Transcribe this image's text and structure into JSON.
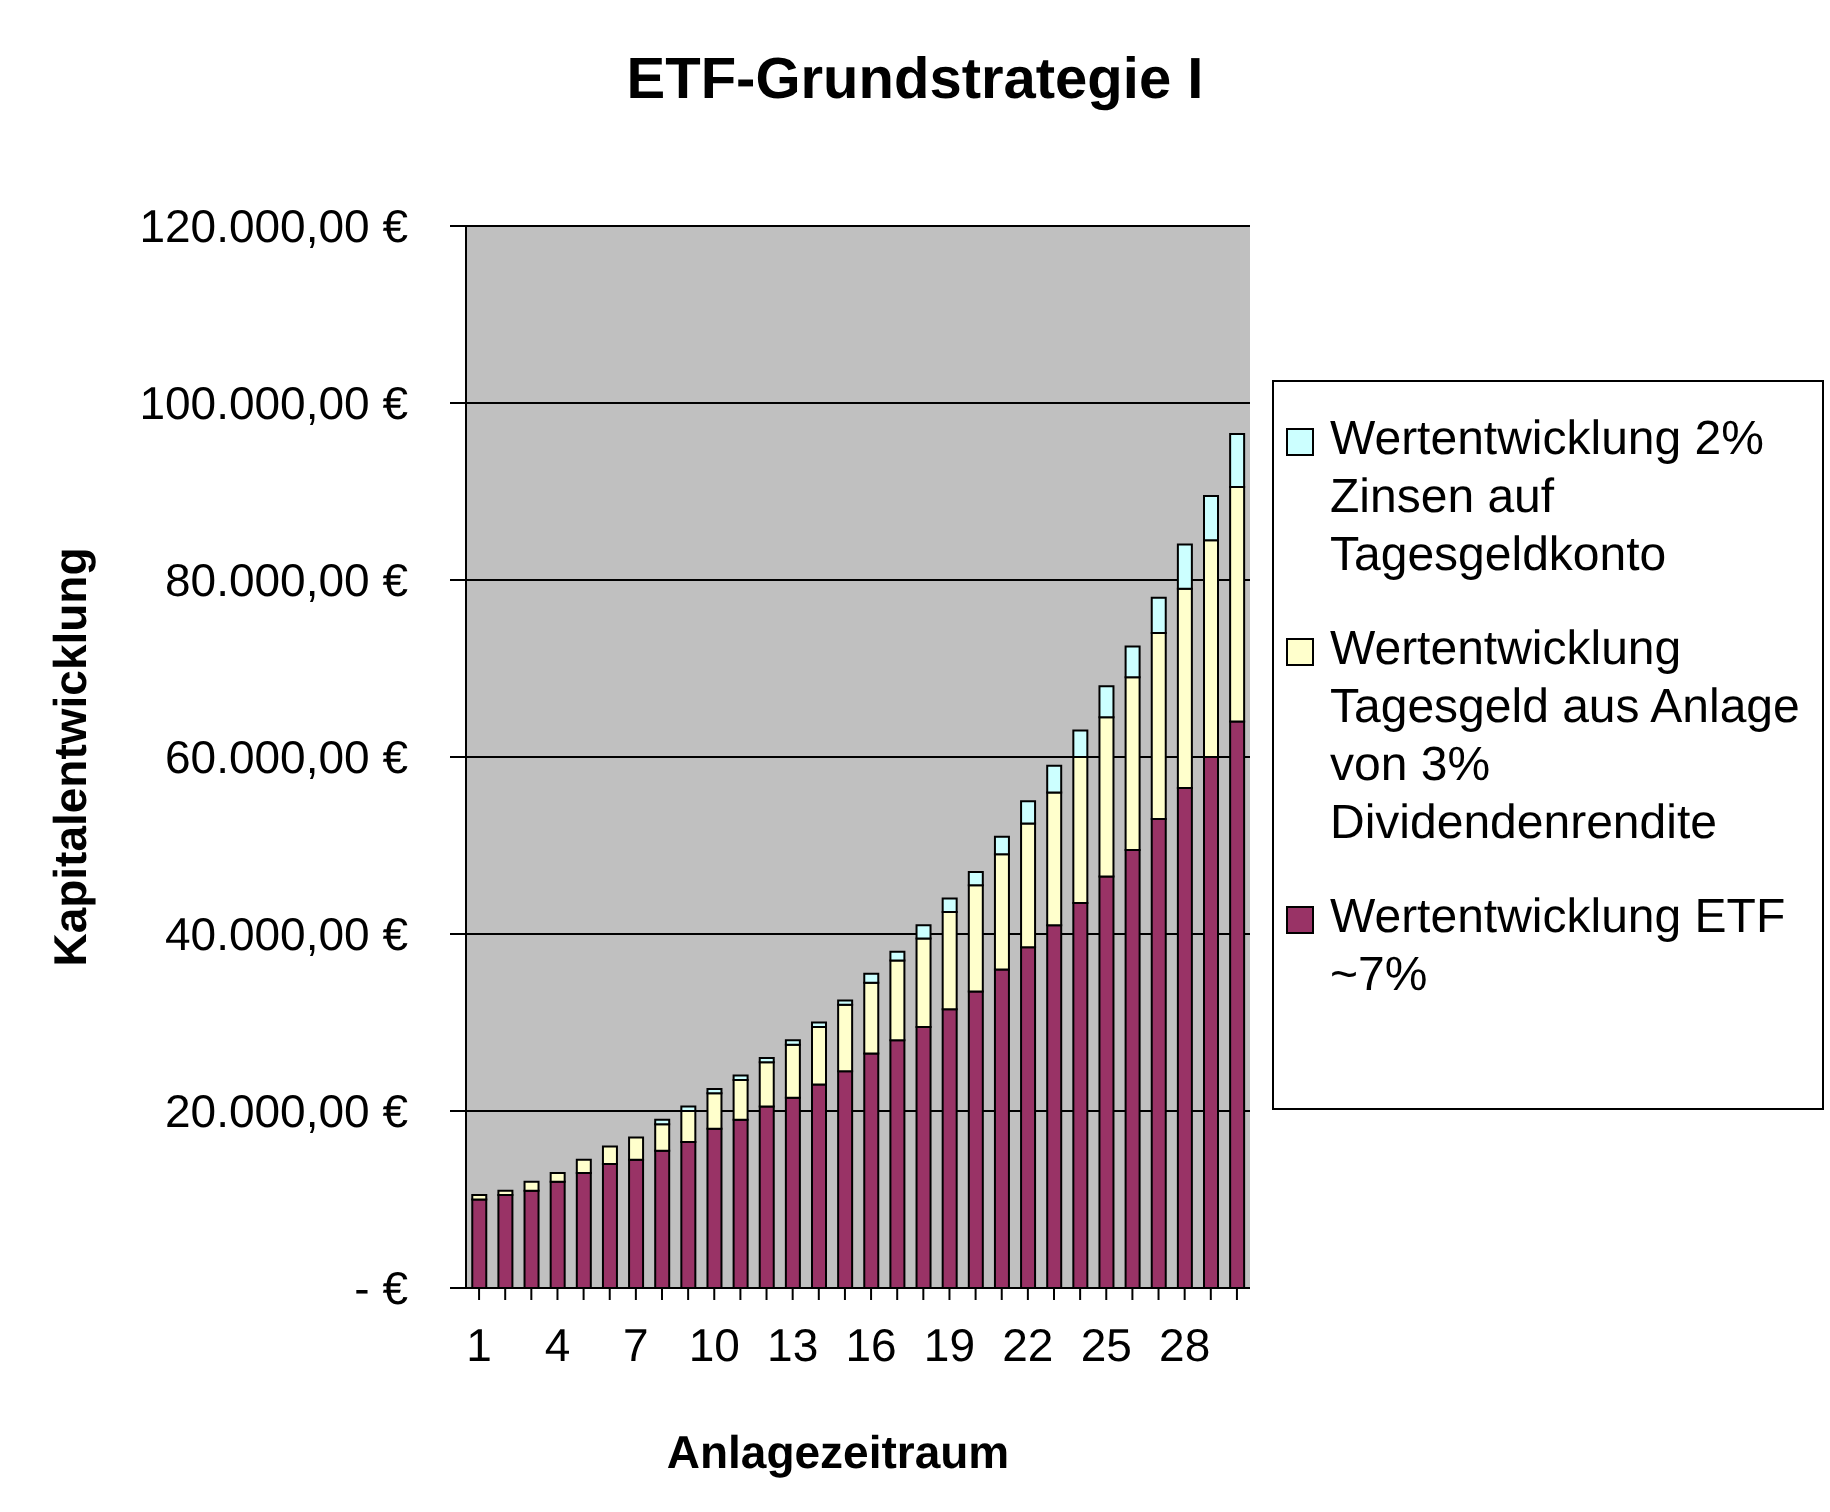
{
  "chart_data": {
    "type": "bar",
    "title": "ETF-Grundstrategie I",
    "xlabel": "Anlagezeitraum",
    "ylabel": "Kapitalentwicklung",
    "categories": [
      "1",
      null,
      null,
      "4",
      null,
      null,
      "7",
      null,
      null,
      "10",
      null,
      null,
      "13",
      null,
      null,
      "16",
      null,
      null,
      "19",
      null,
      null,
      "22",
      null,
      null,
      "25",
      null,
      null,
      "28",
      null,
      null
    ],
    "stacked": true,
    "series": [
      {
        "name": "Wertentwicklung ETF ~7%",
        "color": "#993366",
        "values": [
          10000,
          10500,
          11000,
          12000,
          13000,
          14000,
          14500,
          15500,
          16500,
          18000,
          19000,
          20500,
          21500,
          23000,
          24500,
          26500,
          28000,
          29500,
          31500,
          33500,
          36000,
          38500,
          41000,
          43500,
          46500,
          49500,
          53000,
          56500,
          60000,
          64000
        ]
      },
      {
        "name": "Wertentwicklung Tagesgeld aus Anlage von 3% Dividendenrendite",
        "color": "#ffffcc",
        "values": [
          500,
          500,
          1000,
          1000,
          1500,
          2000,
          2500,
          3000,
          3500,
          4000,
          4500,
          5000,
          6000,
          6500,
          7500,
          8000,
          9000,
          10000,
          11000,
          12000,
          13000,
          14000,
          15000,
          16500,
          18000,
          19500,
          21000,
          22500,
          24500,
          26500
        ]
      },
      {
        "name": "Wertentwicklung 2% Zinsen auf Tagesgeldkonto",
        "color": "#ccffff",
        "values": [
          0,
          0,
          0,
          0,
          0,
          0,
          0,
          500,
          500,
          500,
          500,
          500,
          500,
          500,
          500,
          1000,
          1000,
          1500,
          1500,
          1500,
          2000,
          2500,
          3000,
          3000,
          3500,
          3500,
          4000,
          5000,
          5000,
          6000
        ]
      }
    ],
    "ylim": [
      0,
      120000
    ],
    "yticks": [
      {
        "value": 0,
        "label": "-     €"
      },
      {
        "value": 20000,
        "label": "20.000,00 €"
      },
      {
        "value": 40000,
        "label": "40.000,00 €"
      },
      {
        "value": 60000,
        "label": "60.000,00 €"
      },
      {
        "value": 80000,
        "label": "80.000,00 €"
      },
      {
        "value": 100000,
        "label": "100.000,00 €"
      },
      {
        "value": 120000,
        "label": "120.000,00 €"
      }
    ],
    "grid": "y",
    "legend": "right"
  }
}
